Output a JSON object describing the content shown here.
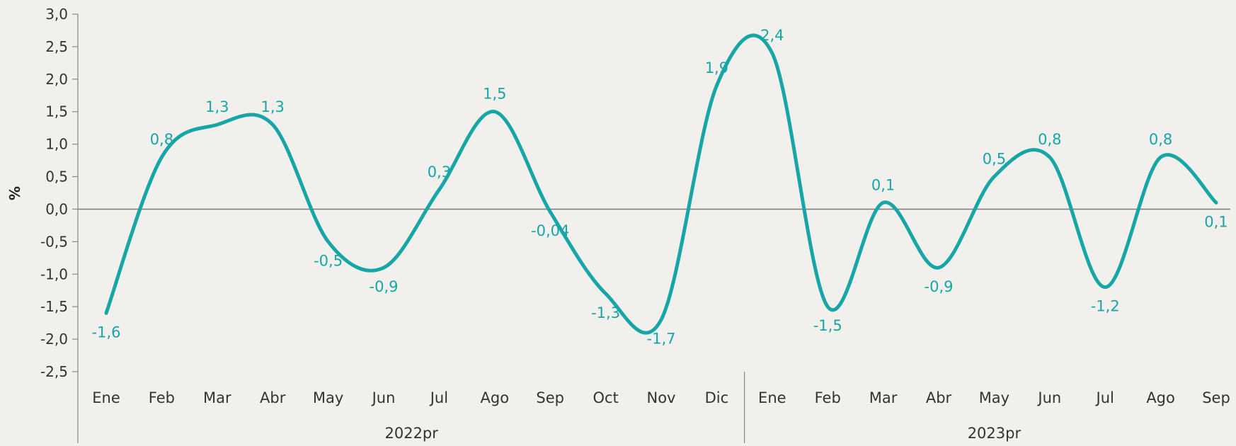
{
  "chart_data": {
    "type": "line",
    "ylabel": "%",
    "ylim": [
      -2.5,
      3.0
    ],
    "yticks": [
      "3,0",
      "2,5",
      "2,0",
      "1,5",
      "1,0",
      "0,5",
      "0,0",
      "-0,5",
      "-1,0",
      "-1,5",
      "-2,0",
      "-2,5"
    ],
    "yticks_values": [
      3.0,
      2.5,
      2.0,
      1.5,
      1.0,
      0.5,
      0.0,
      -0.5,
      -1.0,
      -1.5,
      -2.0,
      -2.5
    ],
    "categories": [
      "Ene",
      "Feb",
      "Mar",
      "Abr",
      "May",
      "Jun",
      "Jul",
      "Ago",
      "Sep",
      "Oct",
      "Nov",
      "Dic",
      "Ene",
      "Feb",
      "Mar",
      "Abr",
      "May",
      "Jun",
      "Jul",
      "Ago",
      "Sep"
    ],
    "groups": [
      {
        "label": "2022pr",
        "start": 0,
        "end": 11
      },
      {
        "label": "2023pr",
        "start": 12,
        "end": 20
      }
    ],
    "series": [
      {
        "values": [
          -1.6,
          0.8,
          1.3,
          1.3,
          -0.5,
          -0.9,
          0.3,
          1.5,
          -0.04,
          -1.3,
          -1.7,
          1.9,
          2.4,
          -1.5,
          0.1,
          -0.9,
          0.5,
          0.8,
          -1.2,
          0.8,
          0.1
        ],
        "labels": [
          "-1,6",
          "0,8",
          "1,3",
          "1,3",
          "-0,5",
          "-0,9",
          "0,3",
          "1,5",
          "-0,04",
          "-1,3",
          "-1,7",
          "1,9",
          "2,4",
          "-1,5",
          "0,1",
          "-0,9",
          "0,5",
          "0,8",
          "-1,2",
          "0,8",
          "0,1"
        ]
      }
    ],
    "colors": {
      "line": "#16a6a6",
      "label": "#16a6a6",
      "axis": "#888888",
      "zero_line": "#7a7a7a",
      "text": "#333333"
    },
    "grid": false,
    "legend": "none"
  }
}
